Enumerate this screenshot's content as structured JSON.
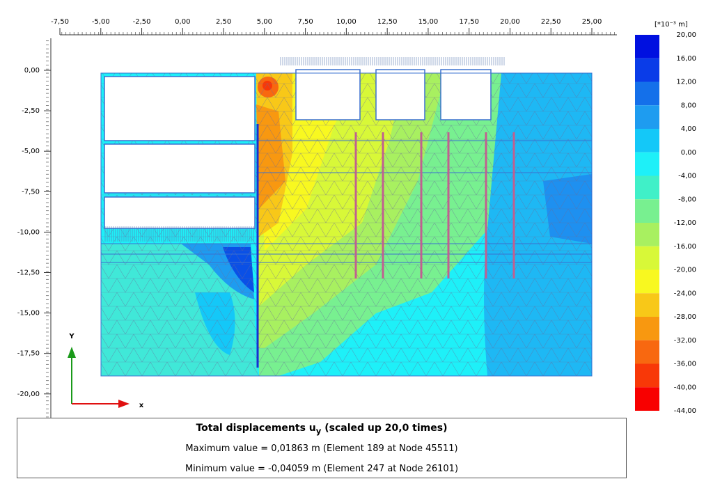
{
  "x_axis": {
    "labels": [
      "-7,50",
      "-5,00",
      "-2,50",
      "0,00",
      "2,50",
      "5,00",
      "7,50",
      "10,00",
      "12,50",
      "15,00",
      "17,50",
      "20,00",
      "22,50",
      "25,00"
    ]
  },
  "y_axis": {
    "labels": [
      "0,00",
      "-2,50",
      "-5,00",
      "-7,50",
      "-10,00",
      "-12,50",
      "-15,00",
      "-17,50",
      "-20,00"
    ]
  },
  "legend": {
    "unit": "[*10⁻³ m]",
    "labels": [
      "20,00",
      "16,00",
      "12,00",
      "8,00",
      "4,00",
      "0,00",
      "-4,00",
      "-8,00",
      "-12,00",
      "-16,00",
      "-20,00",
      "-24,00",
      "-28,00",
      "-32,00",
      "-36,00",
      "-40,00",
      "-44,00"
    ],
    "colors": [
      "#0010e0",
      "#0a3ce8",
      "#1470ea",
      "#1e9cf0",
      "#14c8f8",
      "#1ef0f8",
      "#40f0c8",
      "#78f090",
      "#a8f060",
      "#d8f838",
      "#f8f820",
      "#f8c818",
      "#f89810",
      "#f86810",
      "#f83808",
      "#f80000"
    ]
  },
  "axes_triad": {
    "y": "Y",
    "x": "x"
  },
  "info": {
    "title": "Total displacements u",
    "title_subscript": "y",
    "title_suffix": "(scaled up 20,0 times)",
    "max": "Maximum value = 0,01863 m (Element 189 at Node 45511)",
    "min": "Minimum value = -0,04059 m (Element 247 at Node 26101)"
  }
}
